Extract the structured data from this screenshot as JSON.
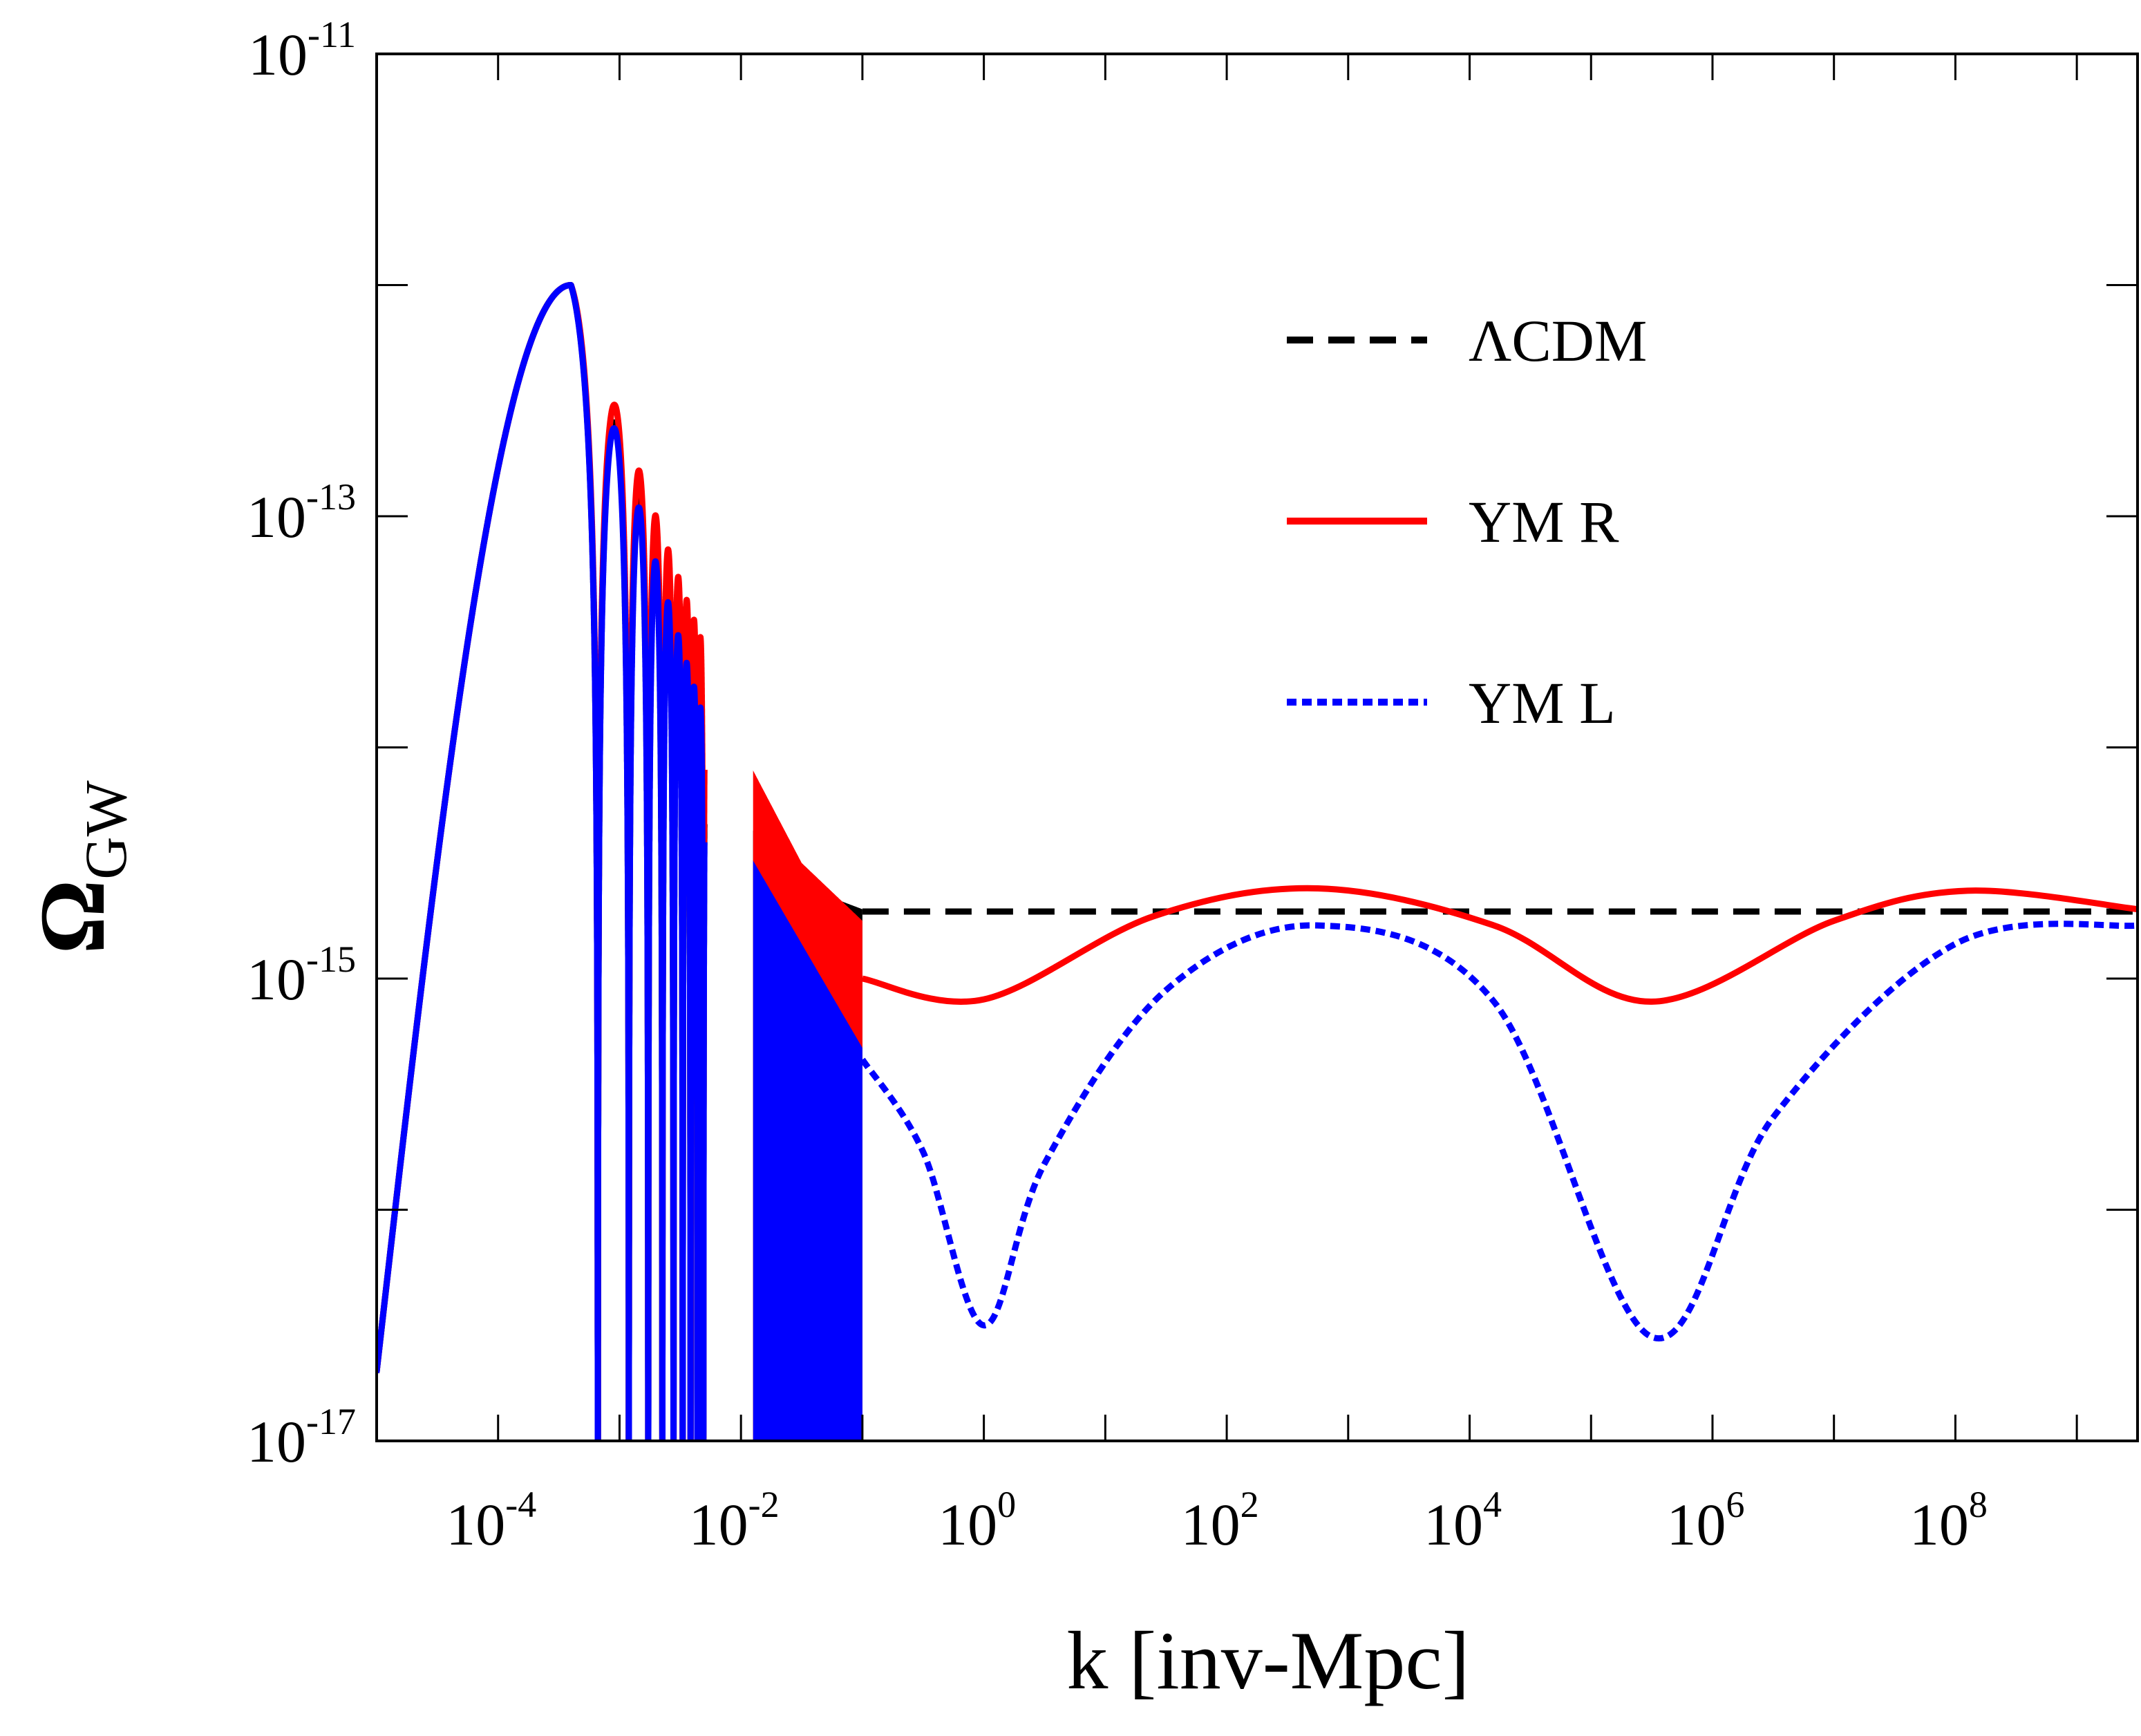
{
  "chart_data": {
    "type": "line",
    "xscale": "log",
    "yscale": "log",
    "xlim_log10": [
      -5.0,
      9.5
    ],
    "ylim_log10": [
      -17,
      -11
    ],
    "xlabel": "k [inv-Mpc]",
    "ylabel": {
      "symbol": "Ω",
      "subscript": "GW"
    },
    "x_ticks": [
      {
        "base": "10",
        "exp": "-4",
        "log10": -4
      },
      {
        "base": "10",
        "exp": "-2",
        "log10": -2
      },
      {
        "base": "10",
        "exp": "0",
        "log10": 0
      },
      {
        "base": "10",
        "exp": "2",
        "log10": 2
      },
      {
        "base": "10",
        "exp": "4",
        "log10": 4
      },
      {
        "base": "10",
        "exp": "6",
        "log10": 6
      },
      {
        "base": "10",
        "exp": "8",
        "log10": 8
      }
    ],
    "y_ticks": [
      {
        "base": "10",
        "exp": "-11",
        "log10": -11
      },
      {
        "base": "10",
        "exp": "-13",
        "log10": -13
      },
      {
        "base": "10",
        "exp": "-15",
        "log10": -15
      },
      {
        "base": "10",
        "exp": "-17",
        "log10": -17
      }
    ],
    "legend": {
      "position": "top-right",
      "entries": [
        {
          "label": "ΛCDM",
          "color": "#000000",
          "style": "dashed"
        },
        {
          "label": "YM R",
          "color": "#ff0000",
          "style": "solid"
        },
        {
          "label": "YM L",
          "color": "#0000ff",
          "style": "dotted"
        }
      ]
    },
    "series": [
      {
        "name": "ΛCDM",
        "color": "#000000",
        "style": "dashed",
        "peak": {
          "log10k": -3.4,
          "log10omega": -12.0
        },
        "oscillation_region_log10k": [
          -3.4,
          -1.0
        ],
        "envelope_points": [
          [
            -2.0,
            -14.3
          ],
          [
            -1.5,
            -14.6
          ],
          [
            -1.0,
            -14.7
          ]
        ],
        "plateau": {
          "log10k_from": -1.0,
          "log10k_to": 9.5,
          "log10omega": -14.71
        }
      },
      {
        "name": "YM R",
        "color": "#ff0000",
        "style": "solid",
        "peak": {
          "log10k": -3.4,
          "log10omega": -12.0
        },
        "oscillation_region_log10k": [
          -3.4,
          -1.0
        ],
        "envelope_points": [
          [
            -2.0,
            -14.0
          ],
          [
            -1.5,
            -14.5
          ],
          [
            -1.0,
            -14.75
          ]
        ],
        "smooth_points": [
          [
            -1.0,
            -15.0
          ],
          [
            0.0,
            -15.09
          ],
          [
            1.4,
            -14.73
          ],
          [
            2.75,
            -14.61
          ],
          [
            4.2,
            -14.77
          ],
          [
            5.5,
            -15.1
          ],
          [
            7.0,
            -14.75
          ],
          [
            8.1,
            -14.62
          ],
          [
            9.5,
            -14.7
          ]
        ]
      },
      {
        "name": "YM L",
        "color": "#0000ff",
        "style": "dotted",
        "peak": {
          "log10k": -3.4,
          "log10omega": -12.0
        },
        "oscillation_region_log10k": [
          -3.4,
          -1.0
        ],
        "envelope_points": [
          [
            -2.0,
            -14.4
          ],
          [
            -1.5,
            -14.85
          ],
          [
            -1.0,
            -15.3
          ]
        ],
        "smooth_points": [
          [
            -1.0,
            -15.35
          ],
          [
            -0.5,
            -15.75
          ],
          [
            0.0,
            -16.5
          ],
          [
            0.5,
            -15.8
          ],
          [
            1.5,
            -15.05
          ],
          [
            2.75,
            -14.77
          ],
          [
            4.2,
            -15.1
          ],
          [
            5.5,
            -16.55
          ],
          [
            6.5,
            -15.6
          ],
          [
            8.0,
            -14.85
          ],
          [
            9.5,
            -14.77
          ]
        ]
      }
    ]
  }
}
